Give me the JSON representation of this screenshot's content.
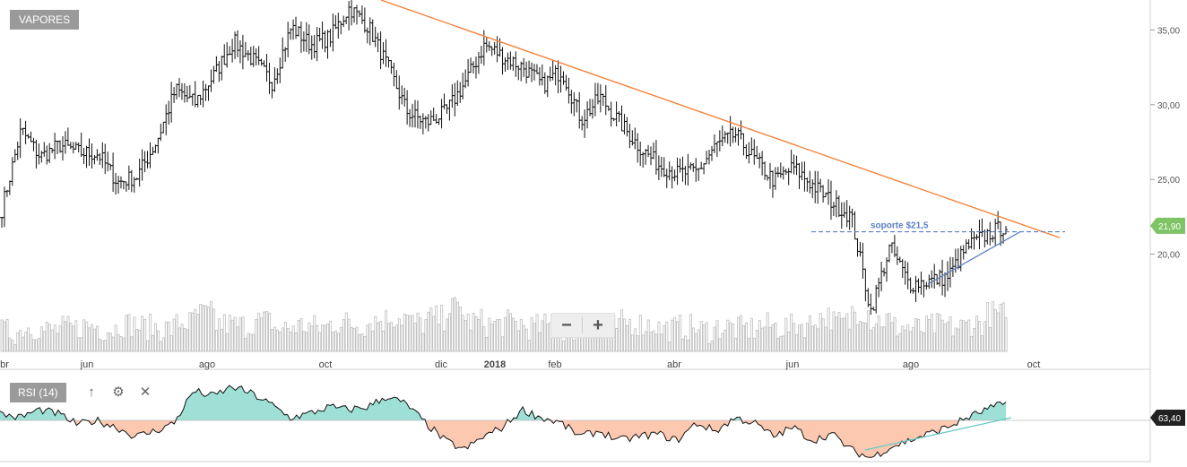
{
  "ticker": "VAPORES",
  "rsi": {
    "label": "RSI (14)",
    "value": "63,40",
    "tools": [
      "arrow-up-icon",
      "gear-icon",
      "close-icon"
    ]
  },
  "zoom": {
    "minus": "−",
    "plus": "+"
  },
  "colors": {
    "trend_line": "#f5813a",
    "support_line": "#5b7ec4",
    "price_badge": "#7ec364",
    "rsi_badge": "#222222",
    "rsi_above": "#9ee0d6",
    "rsi_below": "#fcc9b0",
    "bars": "#111111",
    "volume": "#bdbdbd",
    "rsi_trend": "#63c9c4"
  },
  "chart_data": [
    {
      "type": "ohlc",
      "y_axis": {
        "ticks": [
          "35,00",
          "30,00",
          "25,00",
          "20,00"
        ],
        "tick_values": [
          35,
          30,
          25,
          20
        ],
        "range": [
          13.5,
          37
        ],
        "side": "right"
      },
      "x_axis": {
        "ticks": [
          "br",
          "jun",
          "ago",
          "oct",
          "dic",
          "2018",
          "feb",
          "abr",
          "jun",
          "ago",
          "oct"
        ]
      },
      "last_price": "21,90",
      "annotation": "soporte $21,5",
      "support_level": 21.5,
      "trend_line": {
        "from": 37.0,
        "to": 21.1
      },
      "price_path": [
        [
          "br",
          23.0
        ],
        [
          "",
          28.3
        ],
        [
          "",
          26.5
        ],
        [
          "",
          27.3
        ],
        [
          "",
          26.8
        ],
        [
          "jun",
          26.7
        ],
        [
          "",
          24.8
        ],
        [
          "",
          25.2
        ],
        [
          "",
          27.5
        ],
        [
          "",
          31.0
        ],
        [
          "",
          30.1
        ],
        [
          "ago",
          32.0
        ],
        [
          "",
          34.2
        ],
        [
          "",
          33.0
        ],
        [
          "",
          31.5
        ],
        [
          "",
          35.2
        ],
        [
          "",
          34.0
        ],
        [
          "oct",
          34.5
        ],
        [
          "",
          36.5
        ],
        [
          "",
          35.2
        ],
        [
          "",
          32.5
        ],
        [
          "",
          29.5
        ],
        [
          "",
          28.8
        ],
        [
          "dic",
          29.5
        ],
        [
          "",
          31.5
        ],
        [
          "2018",
          34.0
        ],
        [
          "",
          33.2
        ],
        [
          "",
          32.5
        ],
        [
          "",
          31.3
        ],
        [
          "feb",
          32.3
        ],
        [
          "",
          29.0
        ],
        [
          "",
          30.5
        ],
        [
          "",
          28.8
        ],
        [
          "",
          27.2
        ],
        [
          "",
          26.0
        ],
        [
          "",
          25.4
        ],
        [
          "abr",
          25.5
        ],
        [
          "",
          27.3
        ],
        [
          "",
          28.0
        ],
        [
          "",
          26.3
        ],
        [
          "",
          24.9
        ],
        [
          "",
          25.8
        ],
        [
          "jun",
          24.6
        ],
        [
          "",
          23.5
        ],
        [
          "",
          22.5
        ],
        [
          "",
          16.2
        ],
        [
          "",
          20.5
        ],
        [
          "",
          18.0
        ],
        [
          "ago",
          18.2
        ],
        [
          "",
          18.5
        ],
        [
          "",
          20.5
        ],
        [
          "",
          21.3
        ],
        [
          "",
          21.9
        ]
      ],
      "volume_relative": [
        0.2,
        0.35,
        0.25,
        0.3,
        0.4,
        0.3,
        0.45,
        0.35,
        0.3,
        0.5,
        0.8,
        0.45,
        0.4,
        0.55,
        0.3,
        0.4,
        0.35,
        0.5,
        0.45,
        0.6,
        0.7,
        0.5,
        0.65,
        1.0,
        0.55,
        0.45,
        0.5,
        0.35,
        0.4,
        0.3,
        0.4,
        0.35,
        0.5,
        0.45,
        0.3,
        0.35,
        0.25,
        0.35,
        0.3,
        0.4,
        0.35,
        0.45,
        0.7,
        0.5,
        0.9,
        0.6,
        0.35,
        0.3,
        0.4,
        0.35,
        0.5,
        0.8,
        0.3
      ]
    },
    {
      "type": "area",
      "title": "RSI (14)",
      "value": "63,40",
      "baseline": 50,
      "range": [
        20,
        80
      ],
      "values": [
        55,
        52,
        58,
        55,
        47,
        50,
        45,
        38,
        42,
        48,
        72,
        68,
        75,
        70,
        62,
        52,
        55,
        60,
        58,
        60,
        68,
        62,
        48,
        35,
        28,
        38,
        45,
        58,
        52,
        48,
        38,
        42,
        35,
        38,
        40,
        35,
        48,
        42,
        52,
        48,
        38,
        45,
        35,
        40,
        28,
        22,
        30,
        35,
        40,
        45,
        52,
        58,
        63
      ]
    }
  ]
}
